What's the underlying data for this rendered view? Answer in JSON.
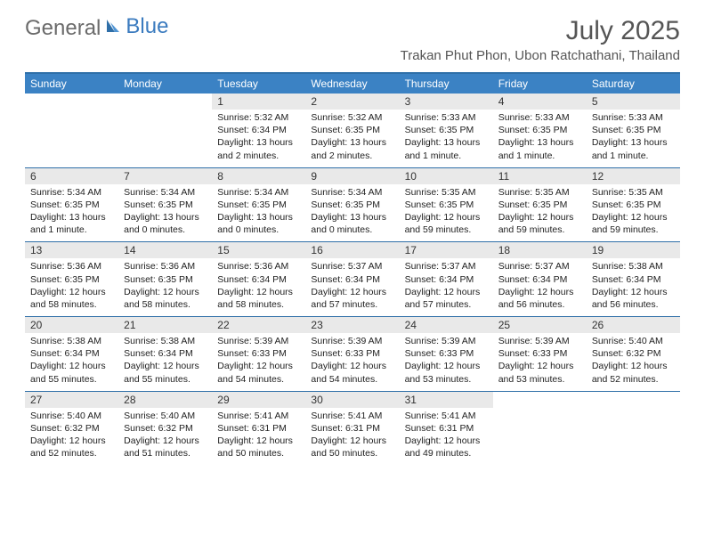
{
  "logo": {
    "part1": "General",
    "part2": "Blue"
  },
  "month_title": "July 2025",
  "location": "Trakan Phut Phon, Ubon Ratchathani, Thailand",
  "colors": {
    "header_bg": "#3b82c4",
    "header_border": "#2f6fa8",
    "daynum_bg": "#e9e9e9",
    "text": "#222222",
    "title_text": "#555555",
    "logo_gray": "#6b6b6b",
    "logo_blue": "#3b7bbf"
  },
  "day_names": [
    "Sunday",
    "Monday",
    "Tuesday",
    "Wednesday",
    "Thursday",
    "Friday",
    "Saturday"
  ],
  "weeks": [
    [
      {
        "day": "",
        "sunrise": "",
        "sunset": "",
        "daylight": ""
      },
      {
        "day": "",
        "sunrise": "",
        "sunset": "",
        "daylight": ""
      },
      {
        "day": "1",
        "sunrise": "Sunrise: 5:32 AM",
        "sunset": "Sunset: 6:34 PM",
        "daylight": "Daylight: 13 hours and 2 minutes."
      },
      {
        "day": "2",
        "sunrise": "Sunrise: 5:32 AM",
        "sunset": "Sunset: 6:35 PM",
        "daylight": "Daylight: 13 hours and 2 minutes."
      },
      {
        "day": "3",
        "sunrise": "Sunrise: 5:33 AM",
        "sunset": "Sunset: 6:35 PM",
        "daylight": "Daylight: 13 hours and 1 minute."
      },
      {
        "day": "4",
        "sunrise": "Sunrise: 5:33 AM",
        "sunset": "Sunset: 6:35 PM",
        "daylight": "Daylight: 13 hours and 1 minute."
      },
      {
        "day": "5",
        "sunrise": "Sunrise: 5:33 AM",
        "sunset": "Sunset: 6:35 PM",
        "daylight": "Daylight: 13 hours and 1 minute."
      }
    ],
    [
      {
        "day": "6",
        "sunrise": "Sunrise: 5:34 AM",
        "sunset": "Sunset: 6:35 PM",
        "daylight": "Daylight: 13 hours and 1 minute."
      },
      {
        "day": "7",
        "sunrise": "Sunrise: 5:34 AM",
        "sunset": "Sunset: 6:35 PM",
        "daylight": "Daylight: 13 hours and 0 minutes."
      },
      {
        "day": "8",
        "sunrise": "Sunrise: 5:34 AM",
        "sunset": "Sunset: 6:35 PM",
        "daylight": "Daylight: 13 hours and 0 minutes."
      },
      {
        "day": "9",
        "sunrise": "Sunrise: 5:34 AM",
        "sunset": "Sunset: 6:35 PM",
        "daylight": "Daylight: 13 hours and 0 minutes."
      },
      {
        "day": "10",
        "sunrise": "Sunrise: 5:35 AM",
        "sunset": "Sunset: 6:35 PM",
        "daylight": "Daylight: 12 hours and 59 minutes."
      },
      {
        "day": "11",
        "sunrise": "Sunrise: 5:35 AM",
        "sunset": "Sunset: 6:35 PM",
        "daylight": "Daylight: 12 hours and 59 minutes."
      },
      {
        "day": "12",
        "sunrise": "Sunrise: 5:35 AM",
        "sunset": "Sunset: 6:35 PM",
        "daylight": "Daylight: 12 hours and 59 minutes."
      }
    ],
    [
      {
        "day": "13",
        "sunrise": "Sunrise: 5:36 AM",
        "sunset": "Sunset: 6:35 PM",
        "daylight": "Daylight: 12 hours and 58 minutes."
      },
      {
        "day": "14",
        "sunrise": "Sunrise: 5:36 AM",
        "sunset": "Sunset: 6:35 PM",
        "daylight": "Daylight: 12 hours and 58 minutes."
      },
      {
        "day": "15",
        "sunrise": "Sunrise: 5:36 AM",
        "sunset": "Sunset: 6:34 PM",
        "daylight": "Daylight: 12 hours and 58 minutes."
      },
      {
        "day": "16",
        "sunrise": "Sunrise: 5:37 AM",
        "sunset": "Sunset: 6:34 PM",
        "daylight": "Daylight: 12 hours and 57 minutes."
      },
      {
        "day": "17",
        "sunrise": "Sunrise: 5:37 AM",
        "sunset": "Sunset: 6:34 PM",
        "daylight": "Daylight: 12 hours and 57 minutes."
      },
      {
        "day": "18",
        "sunrise": "Sunrise: 5:37 AM",
        "sunset": "Sunset: 6:34 PM",
        "daylight": "Daylight: 12 hours and 56 minutes."
      },
      {
        "day": "19",
        "sunrise": "Sunrise: 5:38 AM",
        "sunset": "Sunset: 6:34 PM",
        "daylight": "Daylight: 12 hours and 56 minutes."
      }
    ],
    [
      {
        "day": "20",
        "sunrise": "Sunrise: 5:38 AM",
        "sunset": "Sunset: 6:34 PM",
        "daylight": "Daylight: 12 hours and 55 minutes."
      },
      {
        "day": "21",
        "sunrise": "Sunrise: 5:38 AM",
        "sunset": "Sunset: 6:34 PM",
        "daylight": "Daylight: 12 hours and 55 minutes."
      },
      {
        "day": "22",
        "sunrise": "Sunrise: 5:39 AM",
        "sunset": "Sunset: 6:33 PM",
        "daylight": "Daylight: 12 hours and 54 minutes."
      },
      {
        "day": "23",
        "sunrise": "Sunrise: 5:39 AM",
        "sunset": "Sunset: 6:33 PM",
        "daylight": "Daylight: 12 hours and 54 minutes."
      },
      {
        "day": "24",
        "sunrise": "Sunrise: 5:39 AM",
        "sunset": "Sunset: 6:33 PM",
        "daylight": "Daylight: 12 hours and 53 minutes."
      },
      {
        "day": "25",
        "sunrise": "Sunrise: 5:39 AM",
        "sunset": "Sunset: 6:33 PM",
        "daylight": "Daylight: 12 hours and 53 minutes."
      },
      {
        "day": "26",
        "sunrise": "Sunrise: 5:40 AM",
        "sunset": "Sunset: 6:32 PM",
        "daylight": "Daylight: 12 hours and 52 minutes."
      }
    ],
    [
      {
        "day": "27",
        "sunrise": "Sunrise: 5:40 AM",
        "sunset": "Sunset: 6:32 PM",
        "daylight": "Daylight: 12 hours and 52 minutes."
      },
      {
        "day": "28",
        "sunrise": "Sunrise: 5:40 AM",
        "sunset": "Sunset: 6:32 PM",
        "daylight": "Daylight: 12 hours and 51 minutes."
      },
      {
        "day": "29",
        "sunrise": "Sunrise: 5:41 AM",
        "sunset": "Sunset: 6:31 PM",
        "daylight": "Daylight: 12 hours and 50 minutes."
      },
      {
        "day": "30",
        "sunrise": "Sunrise: 5:41 AM",
        "sunset": "Sunset: 6:31 PM",
        "daylight": "Daylight: 12 hours and 50 minutes."
      },
      {
        "day": "31",
        "sunrise": "Sunrise: 5:41 AM",
        "sunset": "Sunset: 6:31 PM",
        "daylight": "Daylight: 12 hours and 49 minutes."
      },
      {
        "day": "",
        "sunrise": "",
        "sunset": "",
        "daylight": ""
      },
      {
        "day": "",
        "sunrise": "",
        "sunset": "",
        "daylight": ""
      }
    ]
  ]
}
